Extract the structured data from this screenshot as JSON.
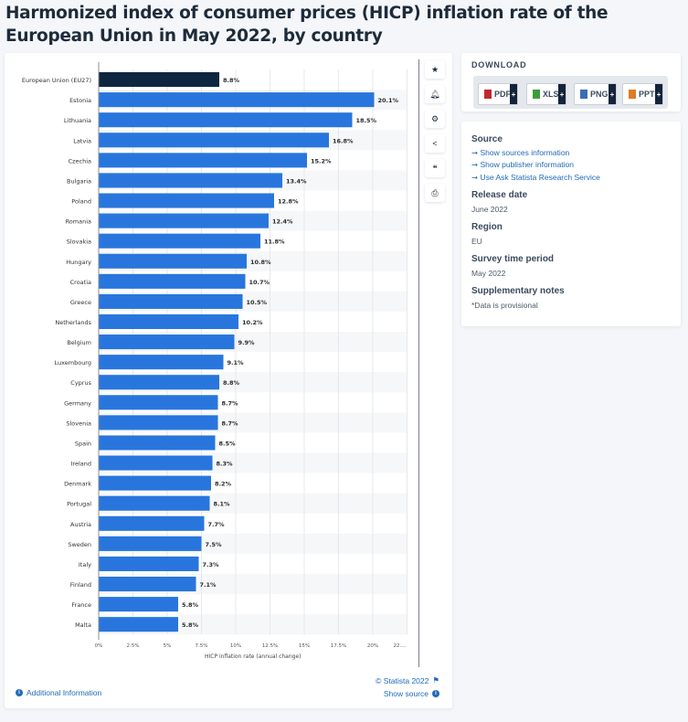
{
  "title": "Harmonized index of consumer prices (HICP) inflation rate of the European Union in May 2022, by country",
  "toolbar": {
    "icons": [
      "star-icon",
      "bell-icon",
      "gear-icon",
      "share-icon",
      "quote-icon",
      "print-icon"
    ]
  },
  "chart_data": {
    "type": "bar",
    "orientation": "horizontal",
    "categories": [
      "European Union (EU27)",
      "Estonia",
      "Lithuania",
      "Latvia",
      "Czechia",
      "Bulgaria",
      "Poland",
      "Romania",
      "Slovakia",
      "Hungary",
      "Croatia",
      "Greece",
      "Netherlands",
      "Belgium",
      "Luxembourg",
      "Cyprus",
      "Germany",
      "Slovenia",
      "Spain",
      "Ireland",
      "Denmark",
      "Portugal",
      "Austria",
      "Sweden",
      "Italy",
      "Finland",
      "France",
      "Malta"
    ],
    "values": [
      8.8,
      20.1,
      18.5,
      16.8,
      15.2,
      13.4,
      12.8,
      12.4,
      11.8,
      10.8,
      10.7,
      10.5,
      10.2,
      9.9,
      9.1,
      8.8,
      8.7,
      8.7,
      8.5,
      8.3,
      8.2,
      8.1,
      7.7,
      7.5,
      7.3,
      7.1,
      5.8,
      5.8
    ],
    "data_labels": [
      "8.8%",
      "20.1%",
      "18.5%",
      "16.8%",
      "15.2%",
      "13.4%",
      "12.8%",
      "12.4%",
      "11.8%",
      "10.8%",
      "10.7%",
      "10.5%",
      "10.2%",
      "9.9%",
      "9.1%",
      "8.8%",
      "8.7%",
      "8.7%",
      "8.5%",
      "8.3%",
      "8.2%",
      "8.1%",
      "7.7%",
      "7.5%",
      "7.3%",
      "7.1%",
      "5.8%",
      "5.8%"
    ],
    "highlight_index": 0,
    "xlabel": "HICP inflation rate (annual change)",
    "ylabel": "",
    "xlim": [
      0,
      22.5
    ],
    "xticks": [
      0,
      2.5,
      5,
      7.5,
      10,
      12.5,
      15,
      17.5,
      20,
      22.5
    ],
    "xtick_labels": [
      "0%",
      "2.5%",
      "5%",
      "7.5%",
      "10%",
      "12.5%",
      "15%",
      "17.5%",
      "20%",
      "22...."
    ],
    "grid": true,
    "colors": {
      "bar": "#2876dd",
      "highlight": "#0f2640",
      "label": "#2b2b2b"
    }
  },
  "footer": {
    "copyright": "© Statista 2022",
    "additional_info": "Additional Information",
    "show_source": "Show source"
  },
  "download": {
    "heading": "DOWNLOAD",
    "buttons": [
      {
        "label": "PDF",
        "color": "#c0282d"
      },
      {
        "label": "XLS",
        "color": "#3e9b3a"
      },
      {
        "label": "PNG",
        "color": "#3a6db5"
      },
      {
        "label": "PPT",
        "color": "#e07a23"
      }
    ]
  },
  "info": {
    "source_heading": "Source",
    "source_links": [
      "Show sources information",
      "Show publisher information",
      "Use Ask Statista Research Service"
    ],
    "release_heading": "Release date",
    "release_value": "June 2022",
    "region_heading": "Region",
    "region_value": "EU",
    "survey_heading": "Survey time period",
    "survey_value": "May 2022",
    "notes_heading": "Supplementary notes",
    "notes_value": "*Data is provisional"
  }
}
